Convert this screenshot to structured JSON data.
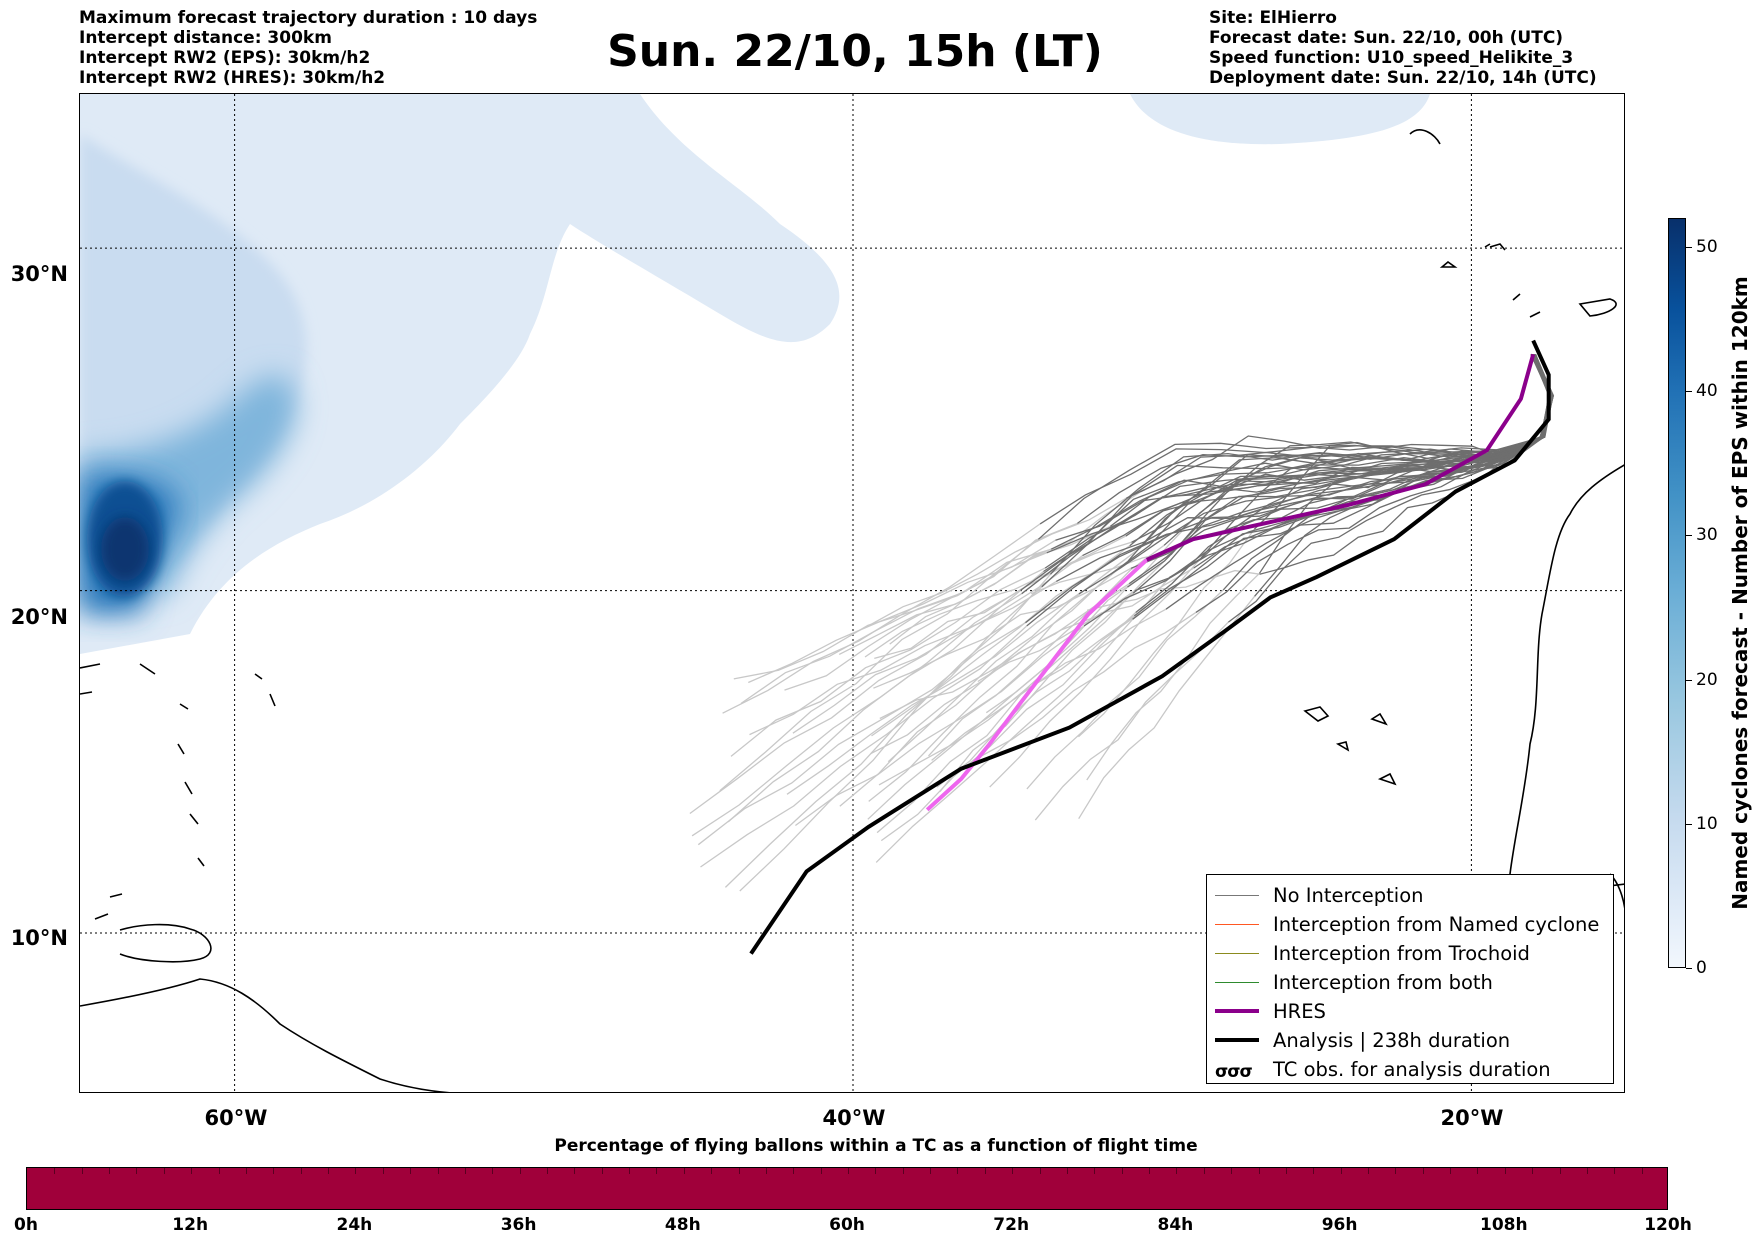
{
  "header_left": [
    "Maximum forecast trajectory duration : 10 days",
    "Intercept distance: 300km",
    "Intercept RW2 (EPS):  30km/h2",
    "Intercept RW2 (HRES): 30km/h2"
  ],
  "header_right": [
    "Site: ElHierro",
    "Forecast date: Sun. 22/10, 00h (UTC)",
    "Speed function: U10_speed_Helikite_3",
    "Deployment date: Sun. 22/10, 14h (UTC)"
  ],
  "title": "Sun. 22/10, 15h (LT)",
  "map": {
    "lat_labels": [
      "30°N",
      "20°N",
      "10°N"
    ],
    "lon_labels": [
      "60°W",
      "40°W",
      "20°W"
    ],
    "grid": true,
    "gridlines": {
      "lon": [
        -60,
        -40,
        -20
      ],
      "lat": [
        30,
        20,
        10
      ]
    },
    "extent": {
      "lon": [
        -65,
        -15
      ],
      "lat": [
        5.3,
        34.5
      ]
    }
  },
  "legend": {
    "entries": [
      {
        "label": "No Interception",
        "color": "#777777",
        "width": 1
      },
      {
        "label": "Interception from Named cyclone",
        "color": "#ff5722",
        "width": 1
      },
      {
        "label": "Interception from Trochoid",
        "color": "#8b8b1e",
        "width": 1
      },
      {
        "label": "Interception from both",
        "color": "#2e8b2e",
        "width": 1
      },
      {
        "label": "HRES",
        "color": "#8b008b",
        "width": 4
      },
      {
        "label": "Analysis | 238h duration",
        "color": "#000000",
        "width": 4
      },
      {
        "label": "TC obs. for analysis duration",
        "symbol": "tc-obs"
      }
    ],
    "placement": "bottom-right"
  },
  "colorbar": {
    "title": "Named cyclones forecast - Number of EPS within 120km",
    "ticks": [
      "0",
      "10",
      "20",
      "30",
      "40",
      "50"
    ],
    "range": [
      0,
      52
    ],
    "colors": [
      "#f2f7fd",
      "#08306b"
    ]
  },
  "bottom": {
    "title": "Percentage of flying ballons within a TC as a function of flight time",
    "labels": [
      "0h",
      "12h",
      "24h",
      "36h",
      "48h",
      "60h",
      "72h",
      "84h",
      "96h",
      "108h",
      "120h"
    ],
    "bar_color": "#a0003a"
  },
  "chart_data": {
    "type": "line",
    "site": "ElHierro",
    "hres_track": [
      [
        -37.6,
        13.6
      ],
      [
        -36.5,
        14.5
      ],
      [
        -35.6,
        15.5
      ],
      [
        -34.6,
        16.7
      ],
      [
        -33.5,
        18.0
      ],
      [
        -32.4,
        19.3
      ],
      [
        -30.5,
        20.9
      ],
      [
        -29.0,
        21.5
      ],
      [
        -26.5,
        22.0
      ],
      [
        -24.0,
        22.5
      ],
      [
        -21.5,
        23.1
      ],
      [
        -19.5,
        24.1
      ],
      [
        -18.4,
        25.6
      ],
      [
        -18.0,
        26.9
      ]
    ],
    "analysis_track": [
      [
        -43.3,
        9.4
      ],
      [
        -41.5,
        11.8
      ],
      [
        -39.5,
        13.1
      ],
      [
        -36.5,
        14.8
      ],
      [
        -33.0,
        16.0
      ],
      [
        -30.0,
        17.5
      ],
      [
        -28.0,
        18.8
      ],
      [
        -26.5,
        19.8
      ],
      [
        -25.0,
        20.4
      ],
      [
        -22.5,
        21.5
      ],
      [
        -20.5,
        22.9
      ],
      [
        -18.6,
        23.8
      ],
      [
        -17.5,
        25.0
      ],
      [
        -17.5,
        26.3
      ],
      [
        -18.0,
        27.3
      ]
    ]
  }
}
